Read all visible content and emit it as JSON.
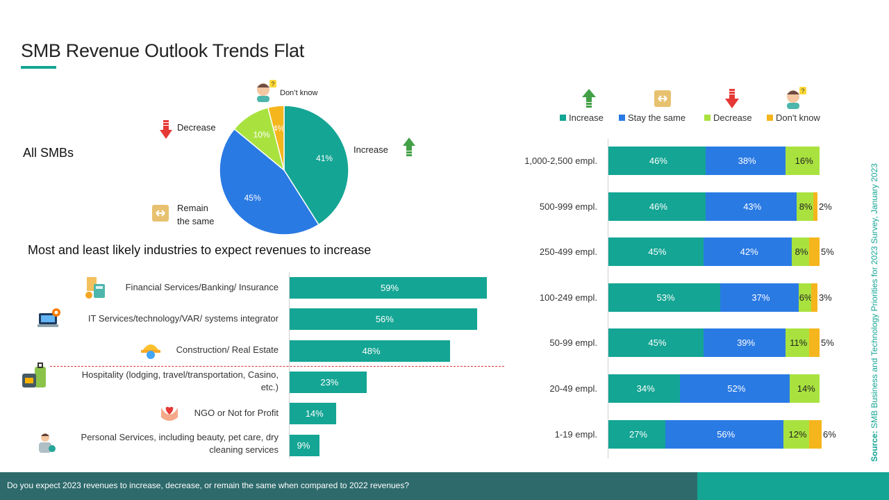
{
  "title": "SMB Revenue Outlook Trends Flat",
  "colors": {
    "increase": "#14a594",
    "stay": "#2a7ae4",
    "decrease": "#a9e23f",
    "dontknow": "#f5b51c",
    "accent": "#14a594",
    "footer": "#2e6a6c",
    "cutoff": "#d32f2f"
  },
  "pie_section": {
    "label": "All SMBs",
    "labels": {
      "increase": "Increase",
      "decrease": "Decrease",
      "remain_line1": "Remain",
      "remain_line2": "the same",
      "dontknow": "Don’t know"
    }
  },
  "industries": {
    "heading": "Most and least likely industries to expect revenues to increase",
    "items": [
      {
        "label": "Financial Services/Banking/ Insurance",
        "value": 59,
        "display": "59%",
        "icon": "finance-icon"
      },
      {
        "label": "IT Services/technology/VAR/ systems integrator",
        "value": 56,
        "display": "56%",
        "icon": "laptop-gear-icon"
      },
      {
        "label": "Construction/ Real Estate",
        "value": 48,
        "display": "48%",
        "icon": "hard-hat-icon"
      },
      {
        "label_line1": "Hospitality (lodging, travel/transportation, Casino,",
        "label_line2": "etc.)",
        "value": 23,
        "display": "23%",
        "icon": "luggage-icon"
      },
      {
        "label": "NGO or Not for Profit",
        "value": 14,
        "display": "14%",
        "icon": "charity-hand-icon"
      },
      {
        "label_line1": "Personal Services, including beauty, pet care, dry",
        "label_line2": "cleaning services",
        "value": 9,
        "display": "9%",
        "icon": "person-service-icon"
      }
    ]
  },
  "legend": {
    "increase": "Increase",
    "stay": "Stay the same",
    "decrease": "Decrease",
    "dontknow": "Don't know"
  },
  "chart_data": [
    {
      "type": "pie",
      "title": "",
      "categories": [
        "Increase",
        "Remain the same",
        "Decrease",
        "Don’t know"
      ],
      "values": [
        41,
        45,
        10,
        4
      ],
      "labels": [
        "41%",
        "45%",
        "10%",
        "4%"
      ]
    },
    {
      "type": "bar",
      "orientation": "horizontal",
      "title": "Most and least likely industries to expect revenues to increase",
      "categories": [
        "Financial Services/Banking/ Insurance",
        "IT Services/technology/VAR/ systems integrator",
        "Construction/ Real Estate",
        "Hospitality (lodging, travel/transportation, Casino, etc.)",
        "NGO or Not for Profit",
        "Personal Services, including beauty, pet care, dry cleaning services"
      ],
      "values": [
        59,
        56,
        48,
        23,
        14,
        9
      ],
      "xlim": [
        0,
        60
      ]
    },
    {
      "type": "bar",
      "orientation": "horizontal",
      "stacked": true,
      "categories": [
        "1,000-2,500 empl.",
        "500-999 empl.",
        "250-499 empl.",
        "100-249 empl.",
        "50-99 empl.",
        "20-49 empl.",
        "1-19 empl."
      ],
      "series": [
        {
          "name": "Increase",
          "values": [
            46,
            46,
            45,
            53,
            45,
            34,
            27
          ]
        },
        {
          "name": "Stay the same",
          "values": [
            38,
            43,
            42,
            37,
            39,
            52,
            56
          ]
        },
        {
          "name": "Decrease",
          "values": [
            16,
            8,
            8,
            6,
            11,
            14,
            12
          ]
        },
        {
          "name": "Don't know",
          "values": [
            0,
            2,
            5,
            3,
            5,
            0,
            6
          ]
        }
      ],
      "legend_position": "top",
      "xlim": [
        0,
        100
      ]
    }
  ],
  "source": {
    "label": "Source:",
    "text": " SMB Business and Technology Priorities for 2023 Survey, January 2023"
  },
  "footer": {
    "question": "Do you expect 2023 revenues to increase, decrease, or remain the same when compared to 2022 revenues?"
  }
}
